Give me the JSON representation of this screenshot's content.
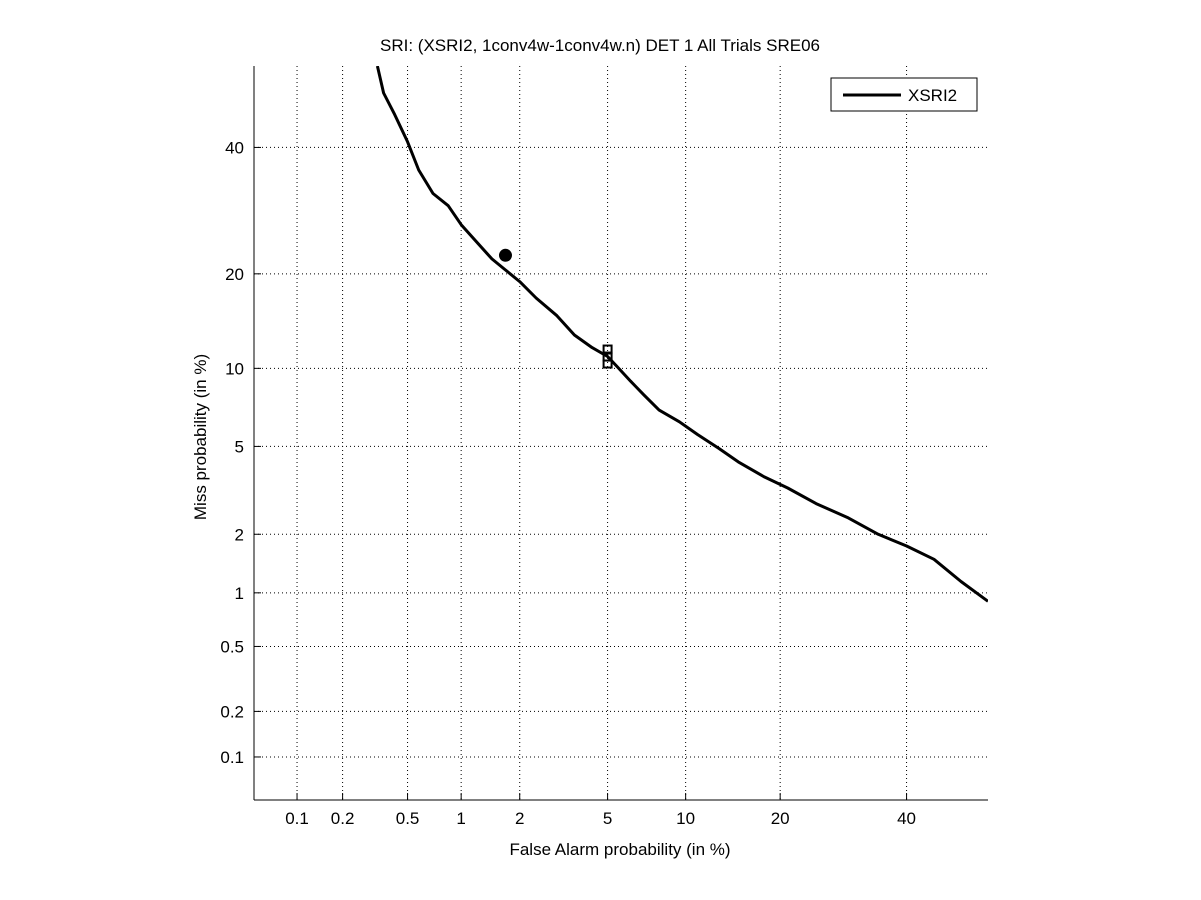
{
  "chart_data": {
    "type": "line",
    "title": "SRI: (XSRI2, 1conv4w-1conv4w.n) DET 1 All Trials SRE06",
    "xlabel": "False Alarm probability (in %)",
    "ylabel": "Miss probability (in %)",
    "x_scale": "probit",
    "y_scale": "probit",
    "xlim": [
      0.05,
      55
    ],
    "ylim": [
      0.05,
      55
    ],
    "x_ticks": [
      0.1,
      0.2,
      0.5,
      1,
      2,
      5,
      10,
      20,
      40
    ],
    "x_tick_labels": [
      "0.1",
      "0.2",
      "0.5",
      "1",
      "2",
      "5",
      "10",
      "20",
      "40"
    ],
    "y_ticks": [
      0.1,
      0.2,
      0.5,
      1,
      2,
      5,
      10,
      20,
      40
    ],
    "y_tick_labels": [
      "0.1",
      "0.2",
      "0.5",
      "1",
      "2",
      "5",
      "10",
      "20",
      "40"
    ],
    "grid": true,
    "grid_style": "dotted",
    "legend_position": "top-right",
    "series": [
      {
        "name": "XSRI2",
        "color": "#000000",
        "x": [
          0.33,
          0.36,
          0.42,
          0.5,
          0.58,
          0.7,
          0.85,
          1.0,
          1.2,
          1.45,
          1.7,
          2.0,
          2.4,
          3.0,
          3.6,
          4.3,
          5.0,
          5.5,
          6.2,
          7.0,
          8.0,
          9.5,
          11,
          13,
          15,
          18,
          21,
          25,
          30,
          35,
          40,
          45,
          50,
          55
        ],
        "y": [
          55,
          50,
          46,
          41,
          36,
          32,
          30,
          27,
          24.5,
          22,
          20.5,
          19,
          17.0,
          15.0,
          13.0,
          11.8,
          11.0,
          10.1,
          9.0,
          8.0,
          7.0,
          6.3,
          5.6,
          4.9,
          4.3,
          3.7,
          3.3,
          2.8,
          2.4,
          2.0,
          1.75,
          1.5,
          1.15,
          0.9
        ]
      }
    ],
    "markers": [
      {
        "shape": "circle",
        "x": 1.7,
        "y": 22.5
      },
      {
        "shape": "square",
        "x": 5.0,
        "y": 11.0
      }
    ]
  }
}
